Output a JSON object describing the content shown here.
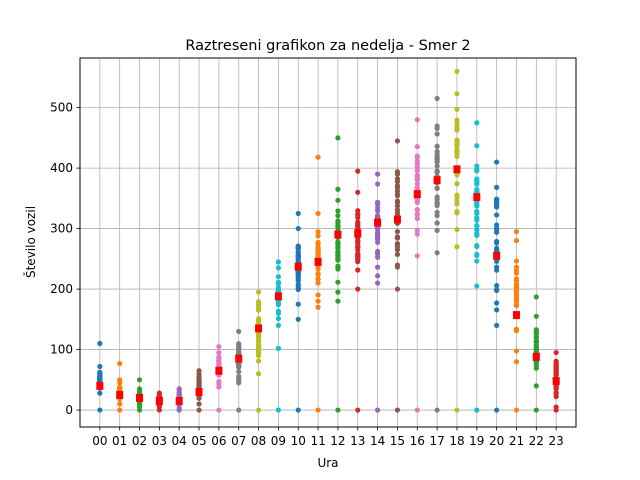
{
  "chart_data": {
    "type": "scatter",
    "title": "Raztreseni grafikon za nedelja - Smer 2",
    "xlabel": "Ura",
    "ylabel": "Število vozil",
    "categories": [
      "00",
      "01",
      "02",
      "03",
      "04",
      "05",
      "06",
      "07",
      "08",
      "09",
      "10",
      "11",
      "12",
      "13",
      "14",
      "15",
      "16",
      "17",
      "18",
      "19",
      "20",
      "21",
      "22",
      "23"
    ],
    "yticks": [
      0,
      100,
      200,
      300,
      400,
      500
    ],
    "ylim": [
      -28,
      582
    ],
    "grid": true,
    "colors": [
      "#1f77b4",
      "#ff7f0e",
      "#2ca02c",
      "#d62728",
      "#9467bd",
      "#8c564b",
      "#e377c2",
      "#7f7f7f",
      "#bcbd22",
      "#17becf"
    ],
    "mean_color": "#ff0000",
    "series": [
      {
        "category": "00",
        "min": 28,
        "max": 72,
        "outliers": [
          0,
          110
        ],
        "mean": 40
      },
      {
        "category": "01",
        "min": 10,
        "max": 50,
        "outliers": [
          0,
          77
        ],
        "mean": 25
      },
      {
        "category": "02",
        "min": 5,
        "max": 35,
        "outliers": [
          0,
          50
        ],
        "mean": 20
      },
      {
        "category": "03",
        "min": 5,
        "max": 28,
        "outliers": [
          0
        ],
        "mean": 15
      },
      {
        "category": "04",
        "min": 3,
        "max": 35,
        "outliers": [
          0
        ],
        "mean": 15
      },
      {
        "category": "05",
        "min": 10,
        "max": 65,
        "outliers": [
          0
        ],
        "mean": 30
      },
      {
        "category": "06",
        "min": 38,
        "max": 95,
        "outliers": [
          0,
          105
        ],
        "mean": 65
      },
      {
        "category": "07",
        "min": 45,
        "max": 130,
        "outliers": [
          0
        ],
        "mean": 85
      },
      {
        "category": "08",
        "min": 60,
        "max": 195,
        "outliers": [
          0
        ],
        "mean": 135
      },
      {
        "category": "09",
        "min": 140,
        "max": 235,
        "outliers": [
          0,
          102,
          245
        ],
        "mean": 188
      },
      {
        "category": "10",
        "min": 175,
        "max": 300,
        "outliers": [
          0,
          150,
          325
        ],
        "mean": 237
      },
      {
        "category": "11",
        "min": 180,
        "max": 325,
        "outliers": [
          0,
          170,
          418
        ],
        "mean": 245
      },
      {
        "category": "12",
        "min": 195,
        "max": 365,
        "outliers": [
          0,
          180,
          450
        ],
        "mean": 290
      },
      {
        "category": "13",
        "min": 200,
        "max": 360,
        "outliers": [
          0,
          395
        ],
        "mean": 292
      },
      {
        "category": "14",
        "min": 210,
        "max": 390,
        "outliers": [
          0
        ],
        "mean": 310
      },
      {
        "category": "15",
        "min": 200,
        "max": 445,
        "outliers": [
          0
        ],
        "mean": 315
      },
      {
        "category": "16",
        "min": 255,
        "max": 480,
        "outliers": [
          0
        ],
        "mean": 357
      },
      {
        "category": "17",
        "min": 260,
        "max": 515,
        "outliers": [
          0
        ],
        "mean": 380
      },
      {
        "category": "18",
        "min": 270,
        "max": 560,
        "outliers": [
          0
        ],
        "mean": 398
      },
      {
        "category": "19",
        "min": 205,
        "max": 475,
        "outliers": [
          0
        ],
        "mean": 352
      },
      {
        "category": "20",
        "min": 140,
        "max": 410,
        "outliers": [
          0
        ],
        "mean": 255
      },
      {
        "category": "21",
        "min": 80,
        "max": 295,
        "outliers": [
          0
        ],
        "mean": 157
      },
      {
        "category": "22",
        "min": 40,
        "max": 155,
        "outliers": [
          0,
          187
        ],
        "mean": 88
      },
      {
        "category": "23",
        "min": 5,
        "max": 95,
        "outliers": [
          0
        ],
        "mean": 48
      }
    ]
  }
}
